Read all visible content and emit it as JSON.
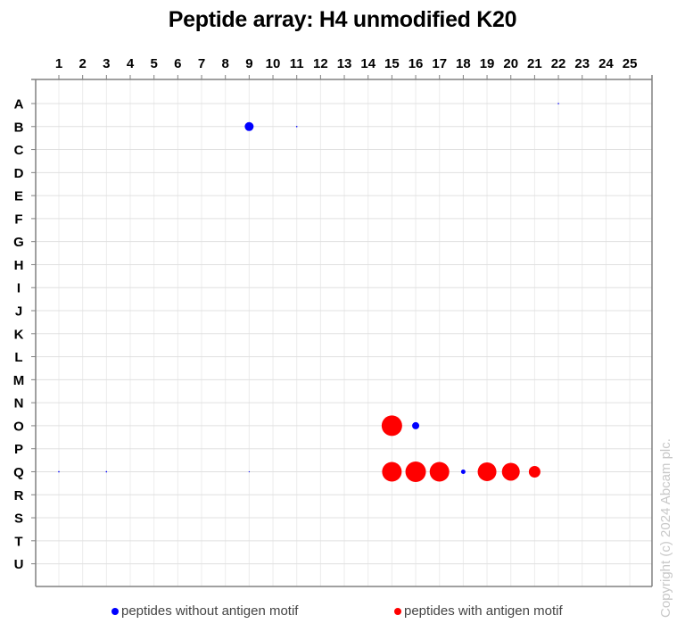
{
  "title": "Peptide array: H4 unmodified K20",
  "copyright": "Copyright (c) 2024 Abcam plc.",
  "legend": {
    "items": [
      {
        "label": "peptides without antigen motif",
        "color": "#0000ff"
      },
      {
        "label": "peptides with antigen motif",
        "color": "#ff0000"
      }
    ]
  },
  "colors": {
    "without_motif": "#0000ff",
    "with_motif": "#ff0000",
    "grid": "#e4e4e4",
    "axis": "#808080"
  },
  "chart_data": {
    "type": "scatter",
    "title": "Peptide array: H4 unmodified K20",
    "xlabel": "",
    "ylabel": "",
    "x_ticks": [
      "1",
      "2",
      "3",
      "4",
      "5",
      "6",
      "7",
      "8",
      "9",
      "10",
      "11",
      "12",
      "13",
      "14",
      "15",
      "16",
      "17",
      "18",
      "19",
      "20",
      "21",
      "22",
      "23",
      "24",
      "25"
    ],
    "y_ticks": [
      "A",
      "B",
      "C",
      "D",
      "E",
      "F",
      "G",
      "H",
      "I",
      "J",
      "K",
      "L",
      "M",
      "N",
      "O",
      "P",
      "Q",
      "R",
      "S",
      "T",
      "U"
    ],
    "grid": true,
    "legend_position": "bottom",
    "size_encoding": "bubble radius (px) proportional to signal",
    "series": [
      {
        "name": "peptides without antigen motif",
        "color": "#0000ff",
        "points": [
          {
            "col": 9,
            "row": "B",
            "size": 5
          },
          {
            "col": 11,
            "row": "B",
            "size": 0.8
          },
          {
            "col": 22,
            "row": "A",
            "size": 0.8
          },
          {
            "col": 16,
            "row": "O",
            "size": 4
          },
          {
            "col": 18,
            "row": "Q",
            "size": 2.5
          },
          {
            "col": 1,
            "row": "Q",
            "size": 0.8
          },
          {
            "col": 3,
            "row": "Q",
            "size": 0.8
          },
          {
            "col": 9,
            "row": "Q",
            "size": 0.6
          }
        ]
      },
      {
        "name": "peptides with antigen motif",
        "color": "#ff0000",
        "points": [
          {
            "col": 15,
            "row": "O",
            "size": 11.5
          },
          {
            "col": 15,
            "row": "Q",
            "size": 11
          },
          {
            "col": 16,
            "row": "Q",
            "size": 11.5
          },
          {
            "col": 17,
            "row": "Q",
            "size": 11
          },
          {
            "col": 19,
            "row": "Q",
            "size": 10.5
          },
          {
            "col": 20,
            "row": "Q",
            "size": 10
          },
          {
            "col": 21,
            "row": "Q",
            "size": 6.5
          }
        ]
      }
    ]
  }
}
